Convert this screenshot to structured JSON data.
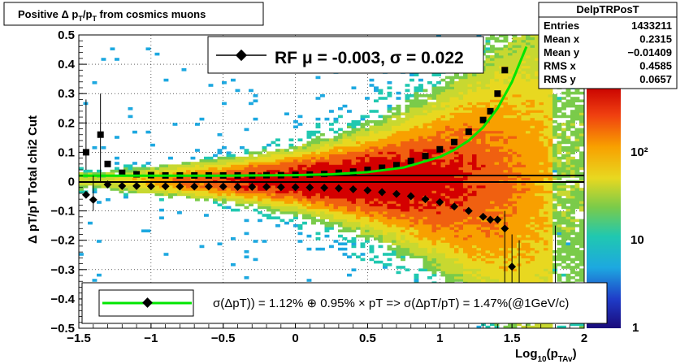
{
  "title": "Positive Δ p_T/p_T from cosmics muons",
  "stats": {
    "name": "DelpTRPosT",
    "rows": [
      {
        "label": "Entries",
        "value": "1433211"
      },
      {
        "label": "Mean x",
        "value": "0.2315"
      },
      {
        "label": "Mean y",
        "value": "−0.01409"
      },
      {
        "label": "RMS x",
        "value": "0.4585"
      },
      {
        "label": "RMS y",
        "value": "0.0657"
      }
    ]
  },
  "legend_top": "RF μ = -0.003, σ =   0.022",
  "legend_bottom": "σ(ΔpT)) =  1.12% ⊕  0.95% × pT => σ(ΔpT/pT) =  1.47%(@1GeV/c)",
  "palette_labels": [
    "1",
    "10",
    "10²"
  ],
  "colors": {
    "fit_curve": "#00e600",
    "markers": "#000000",
    "hot": "#d40000",
    "cold": "#1a0a7a"
  },
  "chart_data": {
    "type": "heatmap",
    "title": "Positive Δ p_T/p_T from cosmics muons",
    "xlabel": "Log10(pTAv)",
    "ylabel": "Δ p_T/p_T   Total chi2 Cut",
    "xlim": [
      -1.5,
      2.0
    ],
    "ylim": [
      -0.5,
      0.5
    ],
    "x_ticks": [
      "−1.5",
      "−1",
      "−0.5",
      "0",
      "0.5",
      "1",
      "1.5",
      "2"
    ],
    "y_ticks": [
      "−0.5",
      "−0.4",
      "−0.3",
      "−0.2",
      "−0.1",
      "0",
      "0.1",
      "0.2",
      "0.3",
      "0.4",
      "0.5"
    ],
    "z_scale": "log",
    "z_range": [
      1,
      500
    ],
    "grid": true,
    "series": [
      {
        "name": "upper sigma",
        "x": [
          -1.45,
          -1.35,
          -1.3,
          -1.2,
          -1.1,
          -1.0,
          -0.9,
          -0.8,
          -0.7,
          -0.6,
          -0.5,
          -0.4,
          -0.3,
          -0.2,
          -0.1,
          0.0,
          0.1,
          0.2,
          0.3,
          0.4,
          0.5,
          0.6,
          0.7,
          0.8,
          0.9,
          1.0,
          1.1,
          1.2,
          1.3,
          1.35,
          1.4,
          1.45
        ],
        "y": [
          0.1,
          0.16,
          0.06,
          0.03,
          0.025,
          0.022,
          0.021,
          0.021,
          0.021,
          0.021,
          0.021,
          0.021,
          0.021,
          0.022,
          0.022,
          0.023,
          0.024,
          0.026,
          0.03,
          0.034,
          0.04,
          0.047,
          0.056,
          0.07,
          0.087,
          0.11,
          0.135,
          0.17,
          0.21,
          0.24,
          0.3,
          0.38
        ]
      },
      {
        "name": "lower sigma",
        "x": [
          -1.45,
          -1.4,
          -1.3,
          -1.2,
          -1.1,
          -1.0,
          -0.9,
          -0.8,
          -0.7,
          -0.6,
          -0.5,
          -0.4,
          -0.3,
          -0.2,
          -0.1,
          0.0,
          0.1,
          0.2,
          0.3,
          0.4,
          0.5,
          0.6,
          0.7,
          0.8,
          0.9,
          1.0,
          1.1,
          1.2,
          1.3,
          1.35,
          1.4,
          1.45,
          1.5
        ],
        "y": [
          -0.045,
          -0.062,
          -0.01,
          -0.015,
          -0.015,
          -0.016,
          -0.016,
          -0.017,
          -0.017,
          -0.017,
          -0.017,
          -0.018,
          -0.018,
          -0.018,
          -0.019,
          -0.019,
          -0.02,
          -0.021,
          -0.023,
          -0.026,
          -0.03,
          -0.036,
          -0.042,
          -0.05,
          -0.06,
          -0.07,
          -0.085,
          -0.1,
          -0.12,
          -0.13,
          -0.13,
          -0.16,
          -0.29
        ]
      },
      {
        "name": "fit",
        "x": [
          -1.5,
          -1.25,
          -1.0,
          -0.75,
          -0.5,
          -0.25,
          0.0,
          0.25,
          0.5,
          0.75,
          1.0,
          1.1,
          1.2,
          1.3,
          1.4,
          1.5,
          1.6
        ],
        "y": [
          0.02,
          0.02,
          0.02,
          0.02,
          0.02,
          0.021,
          0.022,
          0.025,
          0.032,
          0.048,
          0.084,
          0.108,
          0.14,
          0.185,
          0.25,
          0.34,
          0.46
        ]
      }
    ]
  }
}
